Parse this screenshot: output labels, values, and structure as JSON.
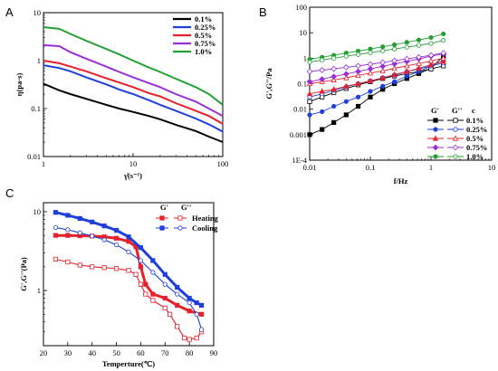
{
  "panels": {
    "A": {
      "letter": "A"
    },
    "B": {
      "letter": "B"
    },
    "C": {
      "letter": "C"
    }
  },
  "chart_data": [
    {
      "id": "A",
      "type": "line",
      "xlabel": "γ̇(s⁻¹)",
      "ylabel": "η(pa·s)",
      "xscale": "log",
      "yscale": "log",
      "xlim": [
        1,
        100
      ],
      "ylim": [
        0.01,
        10
      ],
      "x_ticks": [
        1,
        10,
        100
      ],
      "x_tick_labels": [
        "1",
        "10",
        "100"
      ],
      "y_ticks": [
        0.01,
        0.1,
        1,
        10
      ],
      "y_tick_labels": [
        "0.01",
        "0.1",
        "1",
        "10"
      ],
      "legend_position": "top-right",
      "series": [
        {
          "name": "0.1%",
          "color": "#000000",
          "x": [
            1,
            1.5,
            2,
            3,
            5,
            7,
            10,
            15,
            20,
            30,
            50,
            70,
            100
          ],
          "y": [
            0.33,
            0.24,
            0.2,
            0.16,
            0.12,
            0.1,
            0.085,
            0.07,
            0.06,
            0.046,
            0.034,
            0.026,
            0.02
          ]
        },
        {
          "name": "0.25%",
          "color": "#1f3fdc",
          "x": [
            1,
            1.5,
            2,
            3,
            5,
            7,
            10,
            15,
            20,
            30,
            50,
            70,
            100
          ],
          "y": [
            0.8,
            0.7,
            0.6,
            0.45,
            0.32,
            0.25,
            0.2,
            0.15,
            0.12,
            0.09,
            0.062,
            0.047,
            0.033
          ]
        },
        {
          "name": "0.5%",
          "color": "#e8202a",
          "x": [
            1,
            1.5,
            2,
            3,
            5,
            7,
            10,
            15,
            20,
            30,
            50,
            70,
            100
          ],
          "y": [
            1,
            0.88,
            0.75,
            0.6,
            0.43,
            0.35,
            0.28,
            0.21,
            0.18,
            0.13,
            0.09,
            0.07,
            0.048
          ]
        },
        {
          "name": "0.75%",
          "color": "#9a2fd6",
          "x": [
            1,
            1.5,
            2,
            3,
            5,
            7,
            10,
            15,
            20,
            30,
            50,
            70,
            100
          ],
          "y": [
            2.1,
            2,
            1.5,
            1.1,
            0.75,
            0.58,
            0.45,
            0.34,
            0.28,
            0.2,
            0.14,
            0.1,
            0.07
          ]
        },
        {
          "name": "1.0%",
          "color": "#22a033",
          "x": [
            1,
            1.5,
            2,
            3,
            5,
            7,
            10,
            15,
            20,
            30,
            50,
            70,
            100
          ],
          "y": [
            5,
            4.6,
            3.6,
            2.6,
            1.75,
            1.35,
            1.0,
            0.72,
            0.58,
            0.42,
            0.28,
            0.2,
            0.12
          ]
        }
      ]
    },
    {
      "id": "B",
      "type": "line",
      "xlabel": "f/Hz",
      "ylabel": "G',G''/Pa",
      "xscale": "log",
      "yscale": "log",
      "xlim": [
        0.01,
        10
      ],
      "ylim": [
        0.0001,
        100
      ],
      "x_ticks": [
        0.01,
        0.1,
        1,
        10
      ],
      "x_tick_labels": [
        "0.01",
        "0.1",
        "1",
        "10"
      ],
      "y_ticks": [
        0.0001,
        0.001,
        0.01,
        0.1,
        1,
        10,
        100
      ],
      "y_tick_labels": [
        "1E-4",
        "0.001",
        "0.01",
        "0.1",
        "1",
        "10",
        "100"
      ],
      "legend_position": "bottom-right",
      "legend_headers": [
        "G'",
        "G''",
        "c"
      ],
      "series": [
        {
          "name": "0.1%",
          "color": "#000000",
          "x": [
            0.01,
            0.016,
            0.025,
            0.04,
            0.063,
            0.1,
            0.16,
            0.25,
            0.4,
            0.63,
            1,
            1.6
          ],
          "gp": [
            0.001,
            0.0016,
            0.003,
            0.006,
            0.013,
            0.03,
            0.06,
            0.1,
            0.16,
            0.25,
            0.4,
            1.2
          ],
          "gpp": [
            0.02,
            0.03,
            0.045,
            0.065,
            0.09,
            0.12,
            0.16,
            0.2,
            0.25,
            0.3,
            0.38,
            0.5
          ]
        },
        {
          "name": "0.25%",
          "color": "#1f3fdc",
          "x": [
            0.01,
            0.016,
            0.025,
            0.04,
            0.063,
            0.1,
            0.16,
            0.25,
            0.4,
            0.63,
            1,
            1.6
          ],
          "gp": [
            0.006,
            0.008,
            0.013,
            0.02,
            0.03,
            0.05,
            0.08,
            0.12,
            0.2,
            0.3,
            0.5,
            0.8
          ],
          "gpp": [
            0.03,
            0.04,
            0.055,
            0.075,
            0.1,
            0.13,
            0.17,
            0.22,
            0.3,
            0.38,
            0.5,
            0.65
          ]
        },
        {
          "name": "0.5%",
          "color": "#e8202a",
          "x": [
            0.01,
            0.016,
            0.025,
            0.04,
            0.063,
            0.1,
            0.16,
            0.25,
            0.4,
            0.63,
            1,
            1.6
          ],
          "gp": [
            0.04,
            0.05,
            0.06,
            0.08,
            0.1,
            0.13,
            0.17,
            0.23,
            0.3,
            0.4,
            0.55,
            0.75
          ],
          "gpp": [
            0.1,
            0.12,
            0.14,
            0.17,
            0.21,
            0.26,
            0.32,
            0.4,
            0.5,
            0.62,
            0.78,
            1.0
          ]
        },
        {
          "name": "0.75%",
          "color": "#9a2fd6",
          "x": [
            0.01,
            0.016,
            0.025,
            0.04,
            0.063,
            0.1,
            0.16,
            0.25,
            0.4,
            0.63,
            1,
            1.6
          ],
          "gp": [
            0.12,
            0.15,
            0.19,
            0.24,
            0.3,
            0.38,
            0.48,
            0.6,
            0.75,
            0.95,
            1.2,
            1.5
          ],
          "gpp": [
            0.3,
            0.34,
            0.38,
            0.44,
            0.5,
            0.58,
            0.68,
            0.8,
            0.94,
            1.1,
            1.3,
            1.6
          ]
        },
        {
          "name": "1.0%",
          "color": "#22a033",
          "x": [
            0.01,
            0.016,
            0.025,
            0.04,
            0.063,
            0.1,
            0.16,
            0.25,
            0.4,
            0.63,
            1,
            1.6
          ],
          "gp": [
            0.9,
            1.1,
            1.3,
            1.6,
            1.9,
            2.3,
            2.8,
            3.4,
            4.2,
            5.2,
            6.5,
            9
          ],
          "gpp": [
            0.7,
            0.85,
            1.0,
            1.2,
            1.4,
            1.65,
            1.95,
            2.3,
            2.7,
            3.2,
            3.8,
            5
          ]
        }
      ]
    },
    {
      "id": "C",
      "type": "line",
      "xlabel": "Temperture(℃)",
      "ylabel": "G',G''(Pa)",
      "xscale": "linear",
      "yscale": "log",
      "xlim": [
        20,
        90
      ],
      "ylim": [
        0.2,
        13
      ],
      "x_ticks": [
        20,
        30,
        40,
        50,
        60,
        70,
        80,
        90
      ],
      "x_tick_labels": [
        "20",
        "30",
        "40",
        "50",
        "60",
        "70",
        "80",
        "90"
      ],
      "y_ticks": [
        1,
        10
      ],
      "y_tick_labels": [
        "1",
        "10"
      ],
      "legend_position": "top-right",
      "legend_headers": [
        "G'",
        "G''"
      ],
      "series": [
        {
          "name": "Heating",
          "color": "#e8202a",
          "gp_x": [
            25,
            30,
            35,
            40,
            45,
            50,
            55,
            58,
            60,
            62,
            65,
            70,
            75,
            80,
            85
          ],
          "gp_y": [
            5,
            5,
            4.95,
            4.9,
            4.8,
            4.6,
            4.2,
            3.6,
            2.0,
            1.2,
            0.9,
            0.8,
            0.65,
            0.55,
            0.5
          ],
          "gpp_x": [
            25,
            30,
            35,
            40,
            45,
            50,
            55,
            58,
            60,
            62,
            65,
            70,
            72,
            75,
            78,
            80,
            83,
            85
          ],
          "gpp_y": [
            2.5,
            2.3,
            2.1,
            2.0,
            1.95,
            1.9,
            1.8,
            1.6,
            1.2,
            0.9,
            0.75,
            0.6,
            0.5,
            0.35,
            0.25,
            0.24,
            0.25,
            0.3
          ]
        },
        {
          "name": "Cooling",
          "color": "#1f3fdc",
          "gp_x": [
            25,
            30,
            35,
            40,
            45,
            50,
            55,
            60,
            65,
            70,
            75,
            80,
            83,
            85
          ],
          "gp_y": [
            9.8,
            9.0,
            8.2,
            7.4,
            6.6,
            5.8,
            4.8,
            3.5,
            2.4,
            1.6,
            1.1,
            0.8,
            0.7,
            0.65
          ],
          "gpp_x": [
            25,
            30,
            35,
            40,
            45,
            50,
            55,
            60,
            65,
            70,
            75,
            80,
            83,
            85
          ],
          "gpp_y": [
            6.3,
            5.9,
            5.4,
            4.9,
            4.4,
            3.8,
            3.1,
            2.4,
            1.7,
            1.2,
            0.9,
            0.7,
            0.5,
            0.32
          ]
        }
      ]
    }
  ]
}
